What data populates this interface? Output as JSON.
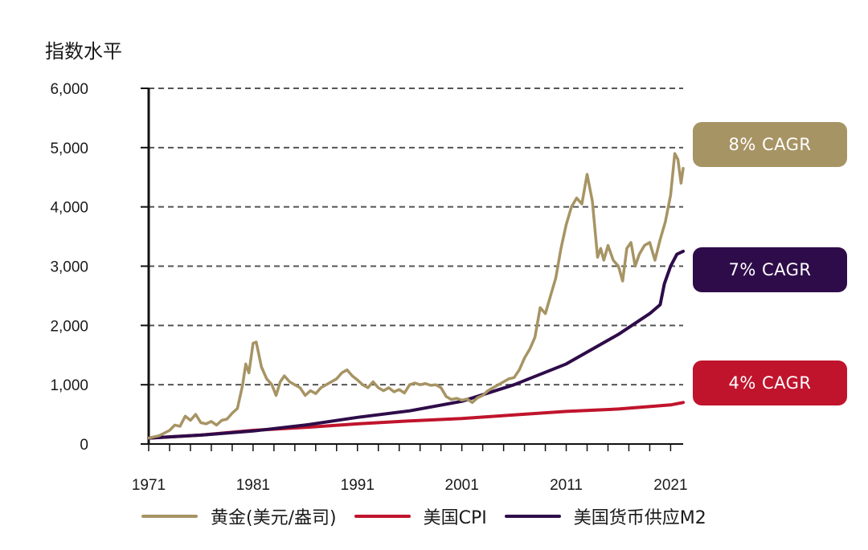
{
  "y_unit_label": "指数水平",
  "colors": {
    "gold": "#A79464",
    "cpi": "#C0142C",
    "m2": "#2E0C49",
    "grid": "#555555",
    "axis": "#111111"
  },
  "badges": [
    {
      "text": "8%   CAGR",
      "color": "#A79464"
    },
    {
      "text": "7%   CAGR",
      "color": "#2E0C49"
    },
    {
      "text": "4%   CAGR",
      "color": "#C0142C"
    }
  ],
  "legend": [
    {
      "label": "黄金(美元/盎司)",
      "color": "#A79464"
    },
    {
      "label": "美国CPI",
      "color": "#C0142C"
    },
    {
      "label": "美国货币供应M2",
      "color": "#2E0C49"
    }
  ],
  "chart_data": {
    "type": "line",
    "ylabel": "指数水平",
    "xlim": [
      1971,
      2022.2
    ],
    "ylim": [
      0,
      6000
    ],
    "y_ticks": [
      0,
      1000,
      2000,
      3000,
      4000,
      5000,
      6000
    ],
    "y_tick_labels": [
      "0",
      "1,000",
      "2,000",
      "3,000",
      "4,000",
      "5,000",
      "6,000"
    ],
    "x_ticks": [
      1971,
      1981,
      1991,
      2001,
      2011,
      2021
    ],
    "x_tick_labels": [
      "1971",
      "1981",
      "1991",
      "2001",
      "2011",
      "2021"
    ],
    "grid": "dashed horizontal",
    "legend_position": "bottom",
    "series": [
      {
        "name": "黄金(美元/盎司)",
        "color": "#A79464",
        "points": [
          [
            1971,
            100
          ],
          [
            1972,
            140
          ],
          [
            1973,
            230
          ],
          [
            1973.5,
            320
          ],
          [
            1974,
            300
          ],
          [
            1974.5,
            470
          ],
          [
            1975,
            400
          ],
          [
            1975.5,
            500
          ],
          [
            1976,
            360
          ],
          [
            1976.5,
            340
          ],
          [
            1977,
            380
          ],
          [
            1977.5,
            320
          ],
          [
            1978,
            400
          ],
          [
            1978.5,
            420
          ],
          [
            1979,
            520
          ],
          [
            1979.5,
            600
          ],
          [
            1980,
            1000
          ],
          [
            1980.3,
            1350
          ],
          [
            1980.6,
            1200
          ],
          [
            1981,
            1700
          ],
          [
            1981.3,
            1720
          ],
          [
            1981.8,
            1300
          ],
          [
            1982.3,
            1100
          ],
          [
            1982.8,
            1000
          ],
          [
            1983.2,
            820
          ],
          [
            1983.6,
            1050
          ],
          [
            1984,
            1150
          ],
          [
            1984.5,
            1050
          ],
          [
            1985,
            1000
          ],
          [
            1985.5,
            950
          ],
          [
            1986,
            820
          ],
          [
            1986.5,
            900
          ],
          [
            1987,
            850
          ],
          [
            1987.5,
            950
          ],
          [
            1988,
            1000
          ],
          [
            1988.5,
            1050
          ],
          [
            1989,
            1100
          ],
          [
            1989.5,
            1200
          ],
          [
            1990,
            1250
          ],
          [
            1990.5,
            1150
          ],
          [
            1991,
            1080
          ],
          [
            1991.5,
            1000
          ],
          [
            1992,
            950
          ],
          [
            1992.5,
            1050
          ],
          [
            1993,
            950
          ],
          [
            1993.5,
            900
          ],
          [
            1994,
            950
          ],
          [
            1994.5,
            880
          ],
          [
            1995,
            920
          ],
          [
            1995.5,
            860
          ],
          [
            1996,
            1000
          ],
          [
            1996.5,
            1030
          ],
          [
            1997,
            1000
          ],
          [
            1997.5,
            1020
          ],
          [
            1998,
            990
          ],
          [
            1998.5,
            1000
          ],
          [
            1999,
            950
          ],
          [
            1999.5,
            800
          ],
          [
            2000,
            750
          ],
          [
            2000.5,
            770
          ],
          [
            2001,
            740
          ],
          [
            2001.5,
            760
          ],
          [
            2002,
            700
          ],
          [
            2002.5,
            780
          ],
          [
            2003,
            820
          ],
          [
            2003.5,
            900
          ],
          [
            2004,
            950
          ],
          [
            2004.5,
            1000
          ],
          [
            2005,
            1050
          ],
          [
            2005.5,
            1100
          ],
          [
            2006,
            1120
          ],
          [
            2006.5,
            1250
          ],
          [
            2007,
            1450
          ],
          [
            2007.5,
            1600
          ],
          [
            2008,
            1800
          ],
          [
            2008.5,
            2300
          ],
          [
            2009,
            2200
          ],
          [
            2009.5,
            2500
          ],
          [
            2010,
            2800
          ],
          [
            2010.5,
            3300
          ],
          [
            2011,
            3700
          ],
          [
            2011.5,
            4000
          ],
          [
            2012,
            4150
          ],
          [
            2012.5,
            4050
          ],
          [
            2013,
            4550
          ],
          [
            2013.5,
            4100
          ],
          [
            2014,
            3150
          ],
          [
            2014.3,
            3300
          ],
          [
            2014.6,
            3100
          ],
          [
            2015,
            3350
          ],
          [
            2015.5,
            3100
          ],
          [
            2016,
            3000
          ],
          [
            2016.4,
            2750
          ],
          [
            2016.8,
            3300
          ],
          [
            2017.2,
            3400
          ],
          [
            2017.6,
            3000
          ],
          [
            2018,
            3200
          ],
          [
            2018.5,
            3350
          ],
          [
            2019,
            3400
          ],
          [
            2019.5,
            3100
          ],
          [
            2020,
            3450
          ],
          [
            2020.5,
            3750
          ],
          [
            2021,
            4200
          ],
          [
            2021.4,
            4900
          ],
          [
            2021.7,
            4800
          ],
          [
            2022,
            4400
          ],
          [
            2022.2,
            4650
          ]
        ]
      },
      {
        "name": "美国CPI",
        "color": "#C0142C",
        "points": [
          [
            1971,
            100
          ],
          [
            1976,
            150
          ],
          [
            1981,
            230
          ],
          [
            1986,
            280
          ],
          [
            1991,
            340
          ],
          [
            1996,
            390
          ],
          [
            2001,
            430
          ],
          [
            2006,
            490
          ],
          [
            2011,
            550
          ],
          [
            2016,
            590
          ],
          [
            2021,
            660
          ],
          [
            2022.2,
            700
          ]
        ]
      },
      {
        "name": "美国货币供应M2",
        "color": "#2E0C49",
        "points": [
          [
            1971,
            100
          ],
          [
            1976,
            150
          ],
          [
            1981,
            220
          ],
          [
            1986,
            320
          ],
          [
            1991,
            450
          ],
          [
            1996,
            560
          ],
          [
            2001,
            720
          ],
          [
            2006,
            1000
          ],
          [
            2011,
            1350
          ],
          [
            2016,
            1850
          ],
          [
            2019,
            2200
          ],
          [
            2020,
            2350
          ],
          [
            2020.4,
            2700
          ],
          [
            2021,
            3000
          ],
          [
            2021.6,
            3200
          ],
          [
            2022.2,
            3250
          ]
        ]
      }
    ]
  }
}
